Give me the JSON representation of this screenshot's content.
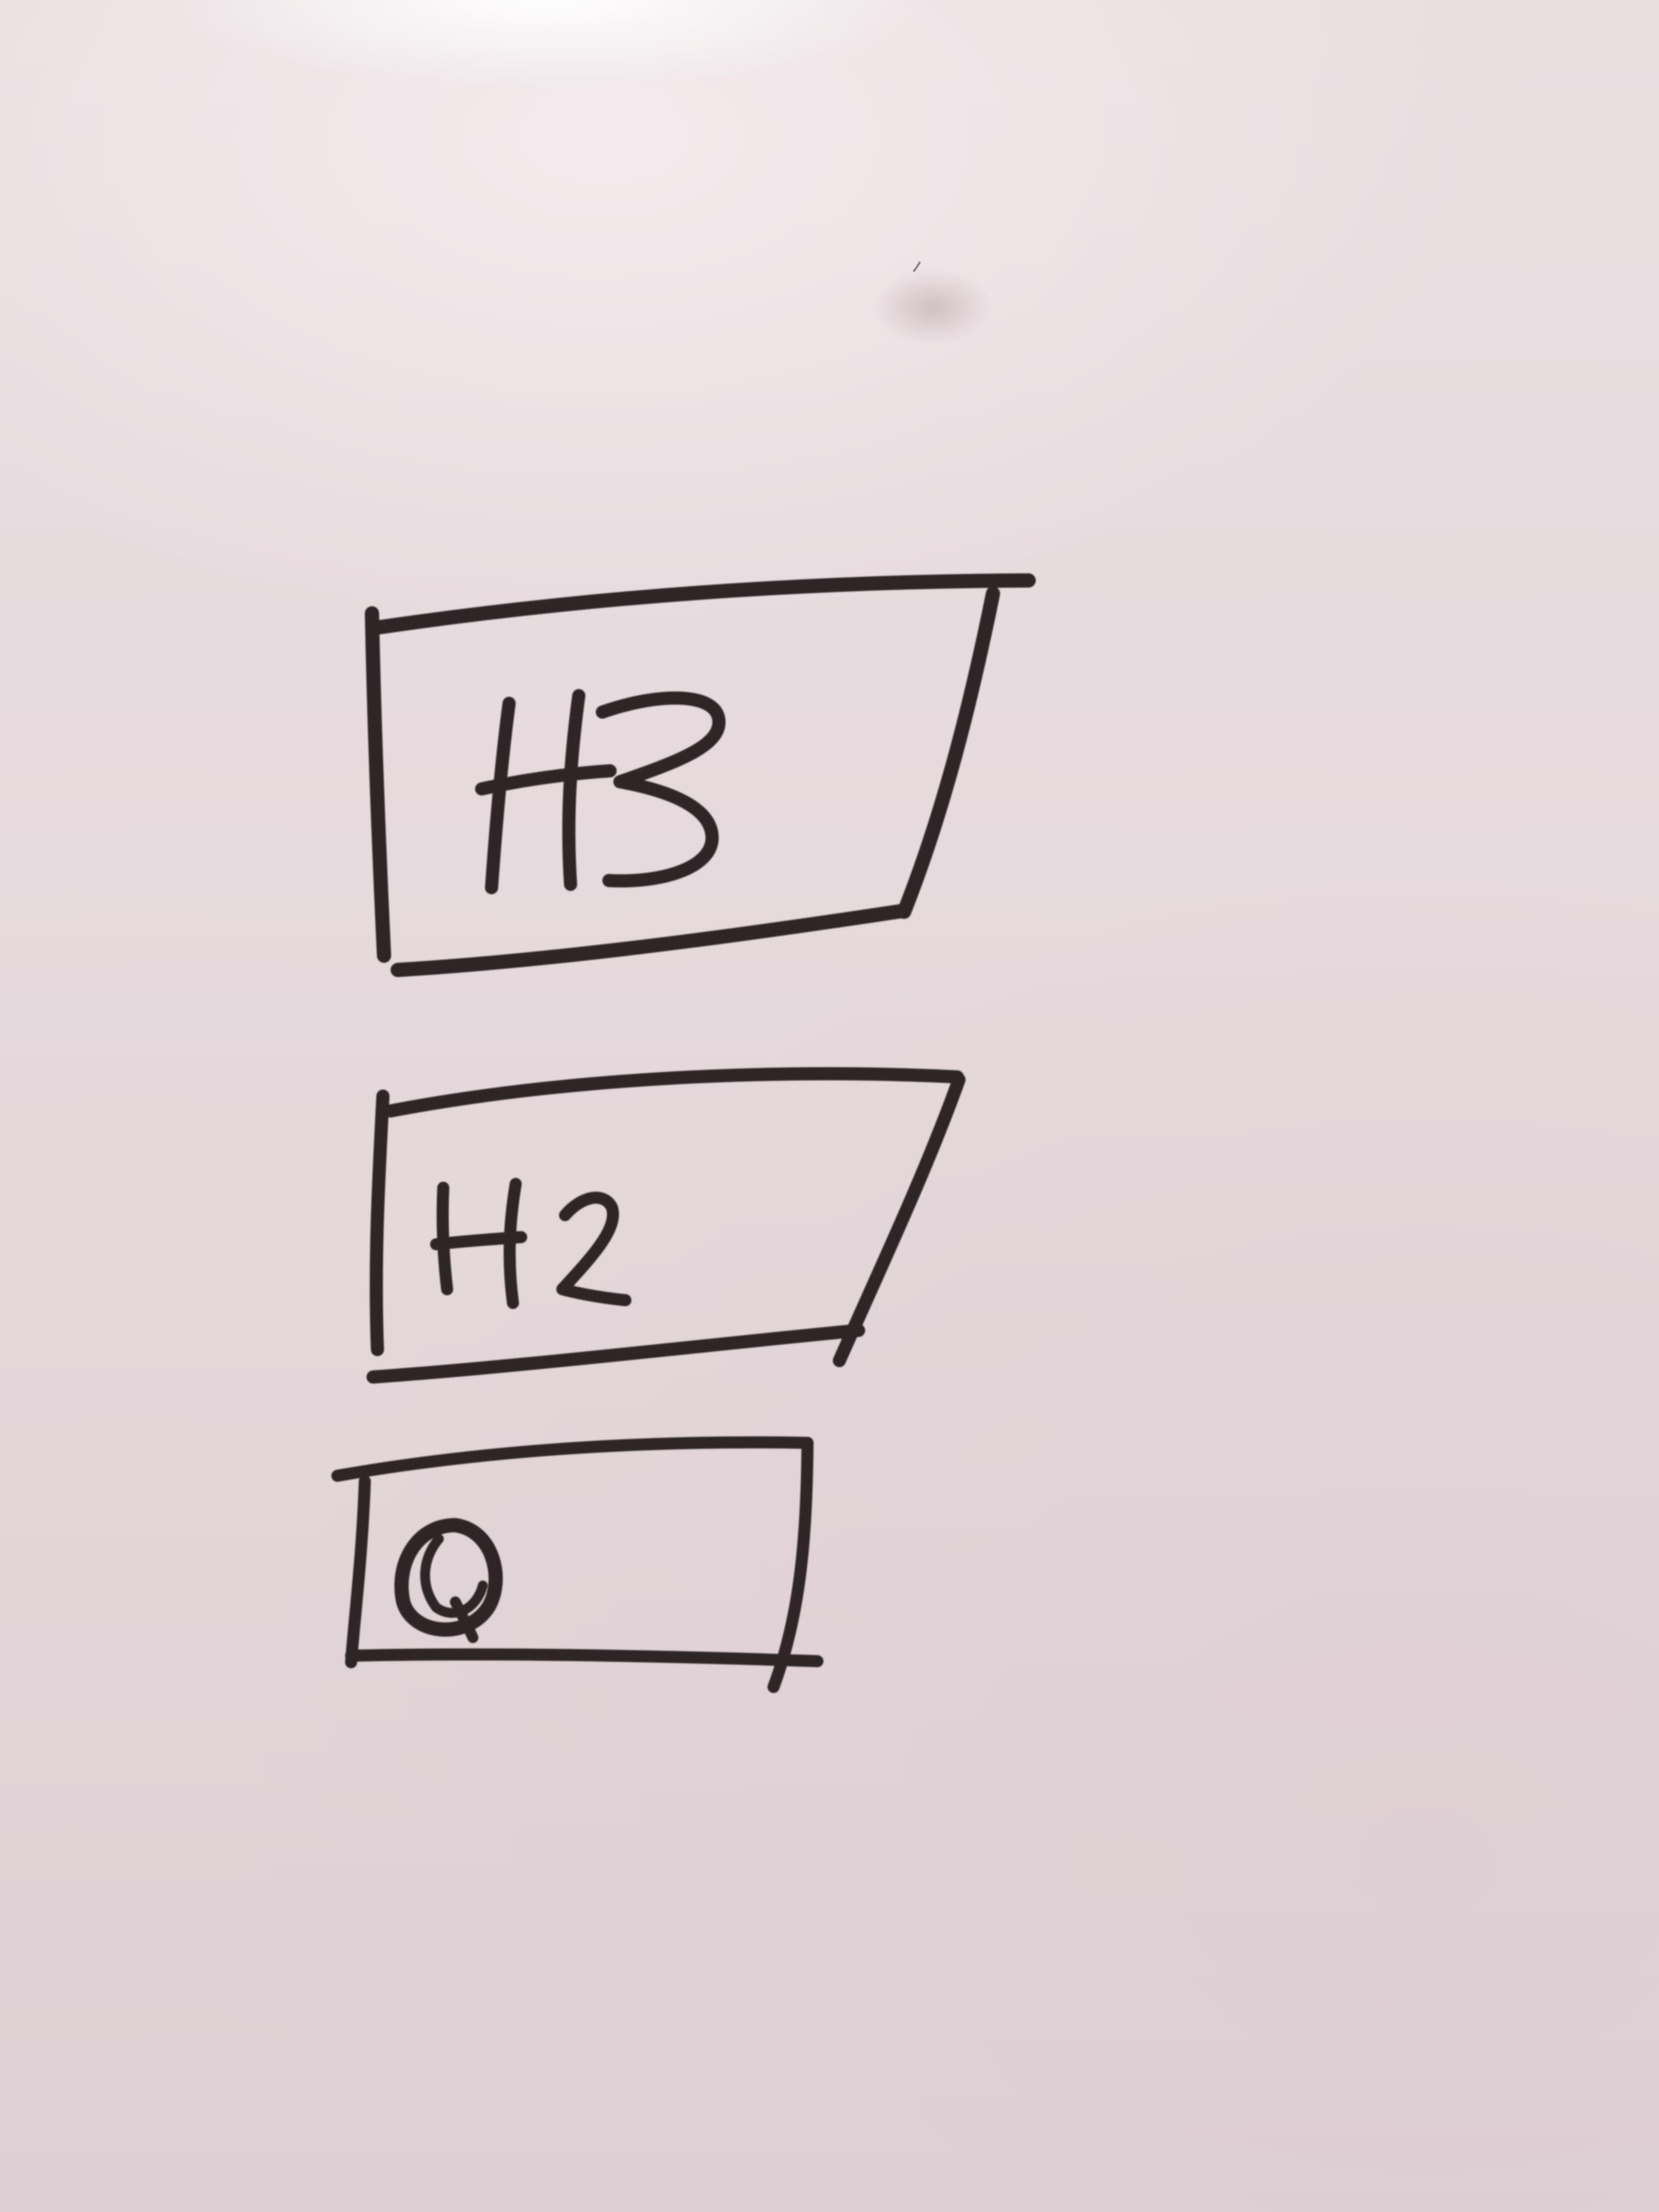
{
  "whiteboard": {
    "boxes": [
      {
        "label": "H3"
      },
      {
        "label": "H2"
      },
      {
        "label": "Q"
      }
    ],
    "colors": {
      "board": "#e6dbde",
      "marker": "#2f2826",
      "glare": "#ffffff"
    }
  }
}
